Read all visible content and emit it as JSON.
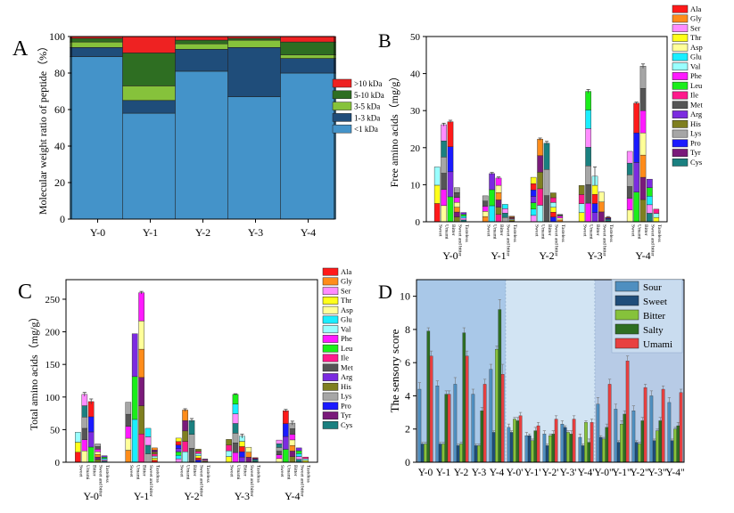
{
  "panels": {
    "A": "A",
    "B": "B",
    "C": "C",
    "D": "D"
  },
  "aa_legend": [
    "Ala",
    "Gly",
    "Ser",
    "Thr",
    "Asp",
    "Glu",
    "Val",
    "Phe",
    "Leu",
    "Ile",
    "Met",
    "Arg",
    "His",
    "Lys",
    "Pro",
    "Tyr",
    "Cys"
  ],
  "aa_colors": [
    "#ff1a1a",
    "#ff8c1a",
    "#ff8cff",
    "#ffff1a",
    "#ffff99",
    "#1aeeff",
    "#99ffff",
    "#ff1aff",
    "#1aee1a",
    "#ff1a8c",
    "#555555",
    "#7b2be0",
    "#7f7f20",
    "#a6a6a6",
    "#1a1aff",
    "#7a1a7a",
    "#1a8080"
  ],
  "chart_data": [
    {
      "panel": "A",
      "type": "bar",
      "stacked": true,
      "categories": [
        "Y-0",
        "Y-1",
        "Y-2",
        "Y-3",
        "Y-4"
      ],
      "ylabel": "Molecular weight ratio of peptide（%）",
      "ylim": [
        0,
        100
      ],
      "yticks": [
        "0",
        "20",
        "40",
        "60",
        "80",
        "100"
      ],
      "series": [
        {
          "name": "<1 kDa",
          "color": "#4493c9",
          "values": [
            89,
            58,
            81,
            67,
            80
          ]
        },
        {
          "name": "1-3 kDa",
          "color": "#1f4d7a",
          "values": [
            5,
            7,
            12,
            27,
            8
          ]
        },
        {
          "name": "3-5 kDa",
          "color": "#86c23b",
          "values": [
            3,
            8,
            3,
            4,
            2
          ]
        },
        {
          "name": "5-10 kDa",
          "color": "#2e6e22",
          "values": [
            2,
            18,
            2,
            1,
            7
          ]
        },
        {
          "name": ">10 kDa",
          "color": "#ee2222",
          "values": [
            1,
            9,
            2,
            1,
            3
          ]
        }
      ],
      "legend_order": [
        ">10 kDa",
        "5-10 kDa",
        "3-5 kDa",
        "1-3 kDa",
        "<1 kDa"
      ]
    },
    {
      "panel": "B",
      "type": "bar",
      "stacked": true,
      "categories": [
        "Y-0",
        "Y-1",
        "Y-2",
        "Y-3",
        "Y-4"
      ],
      "subcategories": [
        "Sweet",
        "Umami",
        "Bitter",
        "Sweet and bitter",
        "Tasteless"
      ],
      "ylabel": "Free amino acids（mg/g）",
      "ylim": [
        0,
        50
      ],
      "yticks": [
        "0",
        "10",
        "20",
        "30",
        "40",
        "50"
      ],
      "totals": [
        [
          14.8,
          26.2,
          27.0,
          9.2,
          2.5
        ],
        [
          7.0,
          13.0,
          11.8,
          4.7,
          1.5
        ],
        [
          12.0,
          22.3,
          21.2,
          7.8,
          2.0
        ],
        [
          9.8,
          35.2,
          12.3,
          8.0,
          1.2
        ],
        [
          19.0,
          32.0,
          42.0,
          11.5,
          3.4
        ]
      ],
      "errors": [
        [
          0,
          0.4,
          0.4,
          0,
          0
        ],
        [
          0,
          0.3,
          0.3,
          0,
          0
        ],
        [
          0,
          0.3,
          0.5,
          0,
          0
        ],
        [
          0,
          0.5,
          2.5,
          0,
          0.2
        ],
        [
          0,
          0.3,
          0.6,
          0,
          0
        ]
      ]
    },
    {
      "panel": "C",
      "type": "bar",
      "stacked": true,
      "categories": [
        "Y-0",
        "Y-1",
        "Y-2",
        "Y-3",
        "Y-4"
      ],
      "subcategories": [
        "Sweet",
        "Umami",
        "Bitter",
        "Sweet and bitter",
        "Tasteless"
      ],
      "ylabel": "Total amino acids（mg/g）",
      "ylim": [
        0,
        280
      ],
      "yticks": [
        "0",
        "50",
        "100",
        "150",
        "200",
        "250"
      ],
      "totals": [
        [
          46,
          104,
          93,
          28,
          10
        ],
        [
          92,
          197,
          260,
          52,
          22
        ],
        [
          37,
          80,
          64,
          20,
          5
        ],
        [
          35,
          104,
          40,
          23,
          7
        ],
        [
          34,
          79,
          60,
          22,
          8
        ]
      ],
      "errors": [
        [
          0,
          3,
          4,
          0,
          0
        ],
        [
          0,
          0,
          2,
          0,
          0
        ],
        [
          0,
          2,
          3,
          0,
          0
        ],
        [
          0,
          1,
          3,
          0,
          0
        ],
        [
          0,
          2,
          3,
          0,
          0
        ]
      ]
    },
    {
      "panel": "D",
      "type": "bar",
      "categories": [
        "Y-0",
        "Y-1",
        "Y-2",
        "Y-3",
        "Y-4",
        "Y-0'",
        "Y-1'",
        "Y-2'",
        "Y-3'",
        "Y-4'",
        "Y-0\"",
        "Y-1\"",
        "Y-2\"",
        "Y-3\"",
        "Y-4\""
      ],
      "ylabel": "The sensory score",
      "ylim": [
        0,
        11
      ],
      "yticks": [
        "0",
        "2",
        "4",
        "6",
        "8",
        "10"
      ],
      "series": [
        {
          "name": "Sour",
          "color": "#4f8fc0",
          "values": [
            4.4,
            4.6,
            4.7,
            4.1,
            5.6,
            2.1,
            1.6,
            1.7,
            2.3,
            1.5,
            3.5,
            3.2,
            3.1,
            4.0,
            3.6
          ],
          "errors": [
            0.4,
            0.3,
            0.4,
            0.3,
            0.3,
            0.2,
            0.2,
            0.2,
            0.2,
            0.2,
            0.4,
            0.3,
            0.3,
            0.3,
            0.3
          ]
        },
        {
          "name": "Sweet",
          "color": "#1f4d7a",
          "values": [
            1.1,
            1.1,
            1.0,
            1.0,
            1.8,
            1.8,
            1.6,
            1.0,
            2.1,
            1.0,
            1.5,
            1.2,
            1.2,
            1.3,
            1.3
          ],
          "errors": [
            0.1,
            0.1,
            0.1,
            0.1,
            0.1,
            0.1,
            0.1,
            0.1,
            0.1,
            0.1,
            0.1,
            0.1,
            0.1,
            0.1,
            0.1
          ]
        },
        {
          "name": "Bitter",
          "color": "#86c23b",
          "values": [
            1.1,
            1.1,
            1.1,
            1.0,
            6.8,
            2.6,
            1.3,
            1.6,
            1.8,
            2.4,
            1.4,
            2.3,
            1.1,
            1.9,
            2.0
          ],
          "errors": [
            0.1,
            0.1,
            0.1,
            0.1,
            0.2,
            0.1,
            0.1,
            0.1,
            0.1,
            0.1,
            0.1,
            0.2,
            0.1,
            0.1,
            0.1
          ]
        },
        {
          "name": "Salty",
          "color": "#2e6e22",
          "values": [
            7.9,
            4.1,
            7.8,
            3.1,
            9.2,
            2.5,
            1.9,
            1.7,
            1.7,
            1.2,
            2.1,
            2.9,
            2.5,
            2.5,
            2.2
          ],
          "errors": [
            0.2,
            0.2,
            0.3,
            0.2,
            0.6,
            0.2,
            0.2,
            0.2,
            0.2,
            0.2,
            0.2,
            0.2,
            0.2,
            0.2,
            0.2
          ]
        },
        {
          "name": "Umami",
          "color": "#e84040",
          "values": [
            6.4,
            4.1,
            6.4,
            4.7,
            5.3,
            2.8,
            2.2,
            2.6,
            2.6,
            2.4,
            4.7,
            6.1,
            4.5,
            4.4,
            4.2
          ],
          "errors": [
            0.3,
            0.2,
            0.3,
            0.3,
            0.6,
            0.2,
            0.2,
            0.2,
            0.2,
            0.2,
            0.3,
            0.3,
            0.2,
            0.2,
            0.2
          ]
        }
      ],
      "bands": [
        "#a9c8e8",
        "#d2e4f3",
        "#b7cbe6"
      ]
    }
  ]
}
